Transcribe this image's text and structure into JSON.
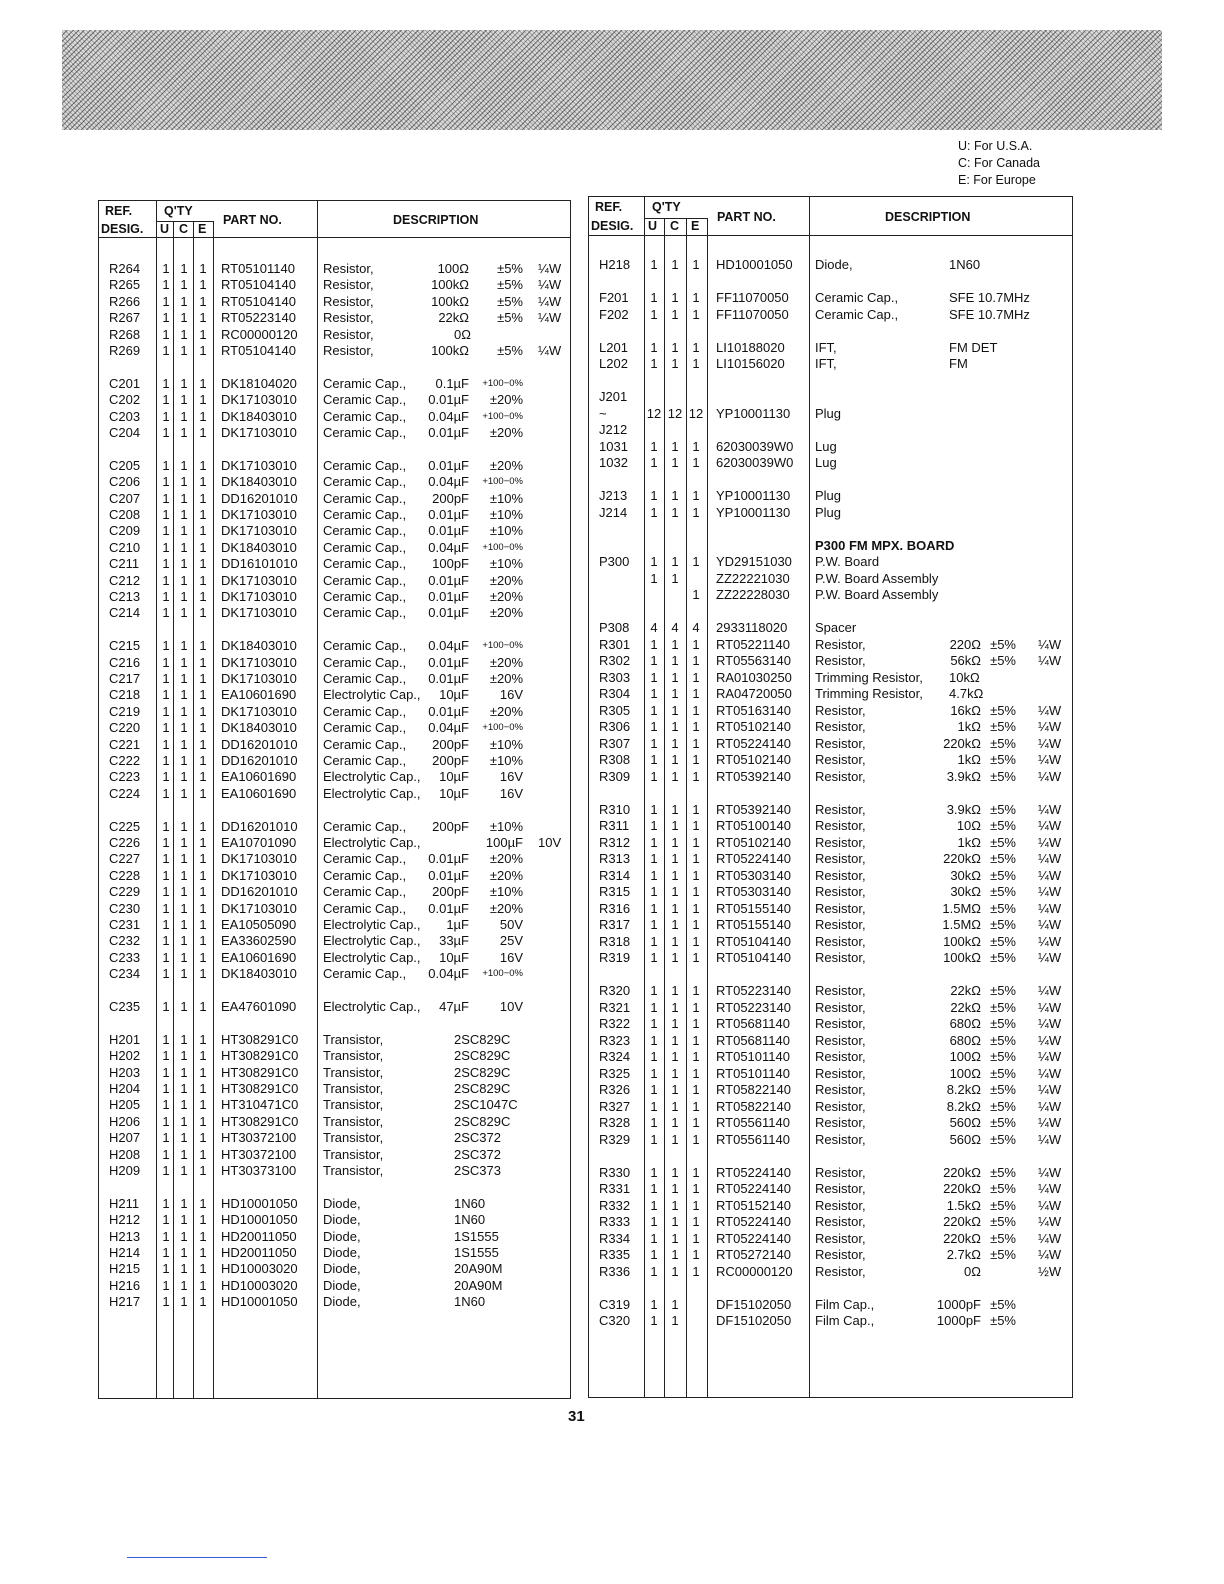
{
  "legend": [
    "U: For U.S.A.",
    "C: For Canada",
    "E: For Europe"
  ],
  "header": {
    "ref1": "REF.",
    "ref2": "DESIG.",
    "qty": "Q'TY",
    "u": "U",
    "c": "C",
    "e": "E",
    "part": "PART  NO.",
    "desc": "DESCRIPTION"
  },
  "page_number": "31",
  "left_rows": [
    [
      "R264",
      "1",
      "1",
      "1",
      "RT05101140",
      "Resistor,",
      "100Ω",
      "±5%",
      "¼W"
    ],
    [
      "R265",
      "1",
      "1",
      "1",
      "RT05104140",
      "Resistor,",
      "100kΩ",
      "±5%",
      "¼W"
    ],
    [
      "R266",
      "1",
      "1",
      "1",
      "RT05104140",
      "Resistor,",
      "100kΩ",
      "±5%",
      "¼W"
    ],
    [
      "R267",
      "1",
      "1",
      "1",
      "RT05223140",
      "Resistor,",
      "22kΩ",
      "±5%",
      "¼W"
    ],
    [
      "R268",
      "1",
      "1",
      "1",
      "RC00000120",
      "Resistor,",
      "0Ω",
      "",
      ""
    ],
    [
      "R269",
      "1",
      "1",
      "1",
      "RT05104140",
      "Resistor,",
      "100kΩ",
      "±5%",
      "¼W"
    ],
    [],
    [
      "C201",
      "1",
      "1",
      "1",
      "DK18104020",
      "Ceramic Cap.,",
      "0.1µF",
      "+100−0%",
      ""
    ],
    [
      "C202",
      "1",
      "1",
      "1",
      "DK17103010",
      "Ceramic Cap.,",
      "0.01µF",
      "±20%",
      ""
    ],
    [
      "C203",
      "1",
      "1",
      "1",
      "DK18403010",
      "Ceramic Cap.,",
      "0.04µF",
      "+100−0%",
      ""
    ],
    [
      "C204",
      "1",
      "1",
      "1",
      "DK17103010",
      "Ceramic Cap.,",
      "0.01µF",
      "±20%",
      ""
    ],
    [],
    [
      "C205",
      "1",
      "1",
      "1",
      "DK17103010",
      "Ceramic Cap.,",
      "0.01µF",
      "±20%",
      ""
    ],
    [
      "C206",
      "1",
      "1",
      "1",
      "DK18403010",
      "Ceramic Cap.,",
      "0.04µF",
      "+100−0%",
      ""
    ],
    [
      "C207",
      "1",
      "1",
      "1",
      "DD16201010",
      "Ceramic Cap.,",
      "200pF",
      "±10%",
      ""
    ],
    [
      "C208",
      "1",
      "1",
      "1",
      "DK17103010",
      "Ceramic Cap.,",
      "0.01µF",
      "±10%",
      ""
    ],
    [
      "C209",
      "1",
      "1",
      "1",
      "DK17103010",
      "Ceramic Cap.,",
      "0.01µF",
      "±10%",
      ""
    ],
    [
      "C210",
      "1",
      "1",
      "1",
      "DK18403010",
      "Ceramic Cap.,",
      "0.04µF",
      "+100−0%",
      ""
    ],
    [
      "C211",
      "1",
      "1",
      "1",
      "DD16101010",
      "Ceramic Cap.,",
      "100pF",
      "±10%",
      ""
    ],
    [
      "C212",
      "1",
      "1",
      "1",
      "DK17103010",
      "Ceramic Cap.,",
      "0.01µF",
      "±20%",
      ""
    ],
    [
      "C213",
      "1",
      "1",
      "1",
      "DK17103010",
      "Ceramic Cap.,",
      "0.01µF",
      "±20%",
      ""
    ],
    [
      "C214",
      "1",
      "1",
      "1",
      "DK17103010",
      "Ceramic Cap.,",
      "0.01µF",
      "±20%",
      ""
    ],
    [],
    [
      "C215",
      "1",
      "1",
      "1",
      "DK18403010",
      "Ceramic Cap.,",
      "0.04µF",
      "+100−0%",
      ""
    ],
    [
      "C216",
      "1",
      "1",
      "1",
      "DK17103010",
      "Ceramic Cap.,",
      "0.01µF",
      "±20%",
      ""
    ],
    [
      "C217",
      "1",
      "1",
      "1",
      "DK17103010",
      "Ceramic Cap.,",
      "0.01µF",
      "±20%",
      ""
    ],
    [
      "C218",
      "1",
      "1",
      "1",
      "EA10601690",
      "Electrolytic Cap.,",
      "10µF",
      "16V",
      ""
    ],
    [
      "C219",
      "1",
      "1",
      "1",
      "DK17103010",
      "Ceramic Cap.,",
      "0.01µF",
      "±20%",
      ""
    ],
    [
      "C220",
      "1",
      "1",
      "1",
      "DK18403010",
      "Ceramic Cap.,",
      "0.04µF",
      "+100−0%",
      ""
    ],
    [
      "C221",
      "1",
      "1",
      "1",
      "DD16201010",
      "Ceramic Cap.,",
      "200pF",
      "±10%",
      ""
    ],
    [
      "C222",
      "1",
      "1",
      "1",
      "DD16201010",
      "Ceramic Cap.,",
      "200pF",
      "±10%",
      ""
    ],
    [
      "C223",
      "1",
      "1",
      "1",
      "EA10601690",
      "Electrolytic Cap.,",
      "10µF",
      "16V",
      ""
    ],
    [
      "C224",
      "1",
      "1",
      "1",
      "EA10601690",
      "Electrolytic Cap.,",
      "10µF",
      "16V",
      ""
    ],
    [],
    [
      "C225",
      "1",
      "1",
      "1",
      "DD16201010",
      "Ceramic Cap.,",
      "200pF",
      "±10%",
      ""
    ],
    [
      "C226",
      "1",
      "1",
      "1",
      "EA10701090",
      "Electrolytic Cap.,",
      "",
      "100µF",
      "10V"
    ],
    [
      "C227",
      "1",
      "1",
      "1",
      "DK17103010",
      "Ceramic Cap.,",
      "0.01µF",
      "±20%",
      ""
    ],
    [
      "C228",
      "1",
      "1",
      "1",
      "DK17103010",
      "Ceramic Cap.,",
      "0.01µF",
      "±20%",
      ""
    ],
    [
      "C229",
      "1",
      "1",
      "1",
      "DD16201010",
      "Ceramic Cap.,",
      "200pF",
      "±10%",
      ""
    ],
    [
      "C230",
      "1",
      "1",
      "1",
      "DK17103010",
      "Ceramic Cap.,",
      "0.01µF",
      "±20%",
      ""
    ],
    [
      "C231",
      "1",
      "1",
      "1",
      "EA10505090",
      "Electrolytic Cap.,",
      "1µF",
      "50V",
      ""
    ],
    [
      "C232",
      "1",
      "1",
      "1",
      "EA33602590",
      "Electrolytic Cap.,",
      "33µF",
      "25V",
      ""
    ],
    [
      "C233",
      "1",
      "1",
      "1",
      "EA10601690",
      "Electrolytic Cap.,",
      "10µF",
      "16V",
      ""
    ],
    [
      "C234",
      "1",
      "1",
      "1",
      "DK18403010",
      "Ceramic Cap.,",
      "0.04µF",
      "+100−0%",
      ""
    ],
    [],
    [
      "C235",
      "1",
      "1",
      "1",
      "EA47601090",
      "Electrolytic Cap.,",
      "47µF",
      "10V",
      ""
    ],
    [],
    [
      "H201",
      "1",
      "1",
      "1",
      "HT308291C0",
      "Transistor,",
      "2SC829C",
      "",
      ""
    ],
    [
      "H202",
      "1",
      "1",
      "1",
      "HT308291C0",
      "Transistor,",
      "2SC829C",
      "",
      ""
    ],
    [
      "H203",
      "1",
      "1",
      "1",
      "HT308291C0",
      "Transistor,",
      "2SC829C",
      "",
      ""
    ],
    [
      "H204",
      "1",
      "1",
      "1",
      "HT308291C0",
      "Transistor,",
      "2SC829C",
      "",
      ""
    ],
    [
      "H205",
      "1",
      "1",
      "1",
      "HT310471C0",
      "Transistor,",
      "2SC1047C",
      "",
      ""
    ],
    [
      "H206",
      "1",
      "1",
      "1",
      "HT308291C0",
      "Transistor,",
      "2SC829C",
      "",
      ""
    ],
    [
      "H207",
      "1",
      "1",
      "1",
      "HT30372100",
      "Transistor,",
      "2SC372",
      "",
      ""
    ],
    [
      "H208",
      "1",
      "1",
      "1",
      "HT30372100",
      "Transistor,",
      "2SC372",
      "",
      ""
    ],
    [
      "H209",
      "1",
      "1",
      "1",
      "HT30373100",
      "Transistor,",
      "2SC373",
      "",
      ""
    ],
    [],
    [
      "H211",
      "1",
      "1",
      "1",
      "HD10001050",
      "Diode,",
      "1N60",
      "",
      ""
    ],
    [
      "H212",
      "1",
      "1",
      "1",
      "HD10001050",
      "Diode,",
      "1N60",
      "",
      ""
    ],
    [
      "H213",
      "1",
      "1",
      "1",
      "HD20011050",
      "Diode,",
      "1S1555",
      "",
      ""
    ],
    [
      "H214",
      "1",
      "1",
      "1",
      "HD20011050",
      "Diode,",
      "1S1555",
      "",
      ""
    ],
    [
      "H215",
      "1",
      "1",
      "1",
      "HD10003020",
      "Diode,",
      "20A90M",
      "",
      ""
    ],
    [
      "H216",
      "1",
      "1",
      "1",
      "HD10003020",
      "Diode,",
      "20A90M",
      "",
      ""
    ],
    [
      "H217",
      "1",
      "1",
      "1",
      "HD10001050",
      "Diode,",
      "1N60",
      "",
      ""
    ]
  ],
  "right_rows": [
    [
      "H218",
      "1",
      "1",
      "1",
      "HD10001050",
      "Diode,",
      "1N60",
      "",
      ""
    ],
    [],
    [
      "F201",
      "1",
      "1",
      "1",
      "FF11070050",
      "Ceramic Cap.,",
      "SFE 10.7MHz",
      "",
      ""
    ],
    [
      "F202",
      "1",
      "1",
      "1",
      "FF11070050",
      "Ceramic Cap.,",
      "SFE 10.7MHz",
      "",
      ""
    ],
    [],
    [
      "L201",
      "1",
      "1",
      "1",
      "LI10188020",
      "IFT,",
      "FM DET",
      "",
      ""
    ],
    [
      "L202",
      "1",
      "1",
      "1",
      "LI10156020",
      "IFT,",
      "FM",
      "",
      ""
    ],
    [],
    [
      "J201",
      "",
      "",
      "",
      "",
      "",
      "",
      "",
      ""
    ],
    [
      "~",
      "12",
      "12",
      "12",
      "YP10001130",
      "Plug",
      "",
      "",
      ""
    ],
    [
      "J212",
      "",
      "",
      "",
      "",
      "",
      "",
      "",
      ""
    ],
    [
      "1031",
      "1",
      "1",
      "1",
      "62030039W0",
      "Lug",
      "",
      "",
      ""
    ],
    [
      "1032",
      "1",
      "1",
      "1",
      "62030039W0",
      "Lug",
      "",
      "",
      ""
    ],
    [],
    [
      "J213",
      "1",
      "1",
      "1",
      "YP10001130",
      "Plug",
      "",
      "",
      ""
    ],
    [
      "J214",
      "1",
      "1",
      "1",
      "YP10001130",
      "Plug",
      "",
      "",
      ""
    ],
    [],
    {
      "heading": "P300 FM MPX. BOARD"
    },
    [
      "P300",
      "1",
      "1",
      "1",
      "YD29151030",
      "P.W. Board",
      "",
      "",
      ""
    ],
    [
      "",
      "1",
      "1",
      "",
      "ZZ22221030",
      "P.W. Board Assembly",
      "",
      "",
      ""
    ],
    [
      "",
      "",
      "",
      "1",
      "ZZ22228030",
      "P.W. Board Assembly",
      "",
      "",
      ""
    ],
    [],
    [
      "P308",
      "4",
      "4",
      "4",
      "2933118020",
      "Spacer",
      "",
      "",
      ""
    ],
    [
      "R301",
      "1",
      "1",
      "1",
      "RT05221140",
      "Resistor,",
      "220Ω",
      "±5%",
      "¼W"
    ],
    [
      "R302",
      "1",
      "1",
      "1",
      "RT05563140",
      "Resistor,",
      "56kΩ",
      "±5%",
      "¼W"
    ],
    [
      "R303",
      "1",
      "1",
      "1",
      "RA01030250",
      "Trimming Resistor,",
      "10kΩ",
      "",
      ""
    ],
    [
      "R304",
      "1",
      "1",
      "1",
      "RA04720050",
      "Trimming Resistor,",
      "4.7kΩ",
      "",
      ""
    ],
    [
      "R305",
      "1",
      "1",
      "1",
      "RT05163140",
      "Resistor,",
      "16kΩ",
      "±5%",
      "¼W"
    ],
    [
      "R306",
      "1",
      "1",
      "1",
      "RT05102140",
      "Resistor,",
      "1kΩ",
      "±5%",
      "¼W"
    ],
    [
      "R307",
      "1",
      "1",
      "1",
      "RT05224140",
      "Resistor,",
      "220kΩ",
      "±5%",
      "¼W"
    ],
    [
      "R308",
      "1",
      "1",
      "1",
      "RT05102140",
      "Resistor,",
      "1kΩ",
      "±5%",
      "¼W"
    ],
    [
      "R309",
      "1",
      "1",
      "1",
      "RT05392140",
      "Resistor,",
      "3.9kΩ",
      "±5%",
      "¼W"
    ],
    [],
    [
      "R310",
      "1",
      "1",
      "1",
      "RT05392140",
      "Resistor,",
      "3.9kΩ",
      "±5%",
      "¼W"
    ],
    [
      "R311",
      "1",
      "1",
      "1",
      "RT05100140",
      "Resistor,",
      "10Ω",
      "±5%",
      "¼W"
    ],
    [
      "R312",
      "1",
      "1",
      "1",
      "RT05102140",
      "Resistor,",
      "1kΩ",
      "±5%",
      "¼W"
    ],
    [
      "R313",
      "1",
      "1",
      "1",
      "RT05224140",
      "Resistor,",
      "220kΩ",
      "±5%",
      "¼W"
    ],
    [
      "R314",
      "1",
      "1",
      "1",
      "RT05303140",
      "Resistor,",
      "30kΩ",
      "±5%",
      "¼W"
    ],
    [
      "R315",
      "1",
      "1",
      "1",
      "RT05303140",
      "Resistor,",
      "30kΩ",
      "±5%",
      "¼W"
    ],
    [
      "R316",
      "1",
      "1",
      "1",
      "RT05155140",
      "Resistor,",
      "1.5MΩ",
      "±5%",
      "¼W"
    ],
    [
      "R317",
      "1",
      "1",
      "1",
      "RT05155140",
      "Resistor,",
      "1.5MΩ",
      "±5%",
      "¼W"
    ],
    [
      "R318",
      "1",
      "1",
      "1",
      "RT05104140",
      "Resistor,",
      "100kΩ",
      "±5%",
      "¼W"
    ],
    [
      "R319",
      "1",
      "1",
      "1",
      "RT05104140",
      "Resistor,",
      "100kΩ",
      "±5%",
      "¼W"
    ],
    [],
    [
      "R320",
      "1",
      "1",
      "1",
      "RT05223140",
      "Resistor,",
      "22kΩ",
      "±5%",
      "¼W"
    ],
    [
      "R321",
      "1",
      "1",
      "1",
      "RT05223140",
      "Resistor,",
      "22kΩ",
      "±5%",
      "¼W"
    ],
    [
      "R322",
      "1",
      "1",
      "1",
      "RT05681140",
      "Resistor,",
      "680Ω",
      "±5%",
      "¼W"
    ],
    [
      "R323",
      "1",
      "1",
      "1",
      "RT05681140",
      "Resistor,",
      "680Ω",
      "±5%",
      "¼W"
    ],
    [
      "R324",
      "1",
      "1",
      "1",
      "RT05101140",
      "Resistor,",
      "100Ω",
      "±5%",
      "¼W"
    ],
    [
      "R325",
      "1",
      "1",
      "1",
      "RT05101140",
      "Resistor,",
      "100Ω",
      "±5%",
      "¼W"
    ],
    [
      "R326",
      "1",
      "1",
      "1",
      "RT05822140",
      "Resistor,",
      "8.2kΩ",
      "±5%",
      "¼W"
    ],
    [
      "R327",
      "1",
      "1",
      "1",
      "RT05822140",
      "Resistor,",
      "8.2kΩ",
      "±5%",
      "¼W"
    ],
    [
      "R328",
      "1",
      "1",
      "1",
      "RT05561140",
      "Resistor,",
      "560Ω",
      "±5%",
      "¼W"
    ],
    [
      "R329",
      "1",
      "1",
      "1",
      "RT05561140",
      "Resistor,",
      "560Ω",
      "±5%",
      "¼W"
    ],
    [],
    [
      "R330",
      "1",
      "1",
      "1",
      "RT05224140",
      "Resistor,",
      "220kΩ",
      "±5%",
      "¼W"
    ],
    [
      "R331",
      "1",
      "1",
      "1",
      "RT05224140",
      "Resistor,",
      "220kΩ",
      "±5%",
      "¼W"
    ],
    [
      "R332",
      "1",
      "1",
      "1",
      "RT05152140",
      "Resistor,",
      "1.5kΩ",
      "±5%",
      "¼W"
    ],
    [
      "R333",
      "1",
      "1",
      "1",
      "RT05224140",
      "Resistor,",
      "220kΩ",
      "±5%",
      "¼W"
    ],
    [
      "R334",
      "1",
      "1",
      "1",
      "RT05224140",
      "Resistor,",
      "220kΩ",
      "±5%",
      "¼W"
    ],
    [
      "R335",
      "1",
      "1",
      "1",
      "RT05272140",
      "Resistor,",
      "2.7kΩ",
      "±5%",
      "¼W"
    ],
    [
      "R336",
      "1",
      "1",
      "1",
      "RC00000120",
      "Resistor,",
      "0Ω",
      "",
      "½W"
    ],
    [],
    [
      "C319",
      "1",
      "1",
      "",
      "DF15102050",
      "Film Cap.,",
      "1000pF",
      "±5%",
      ""
    ],
    [
      "C320",
      "1",
      "1",
      "",
      "DF15102050",
      "Film Cap.,",
      "1000pF",
      "±5%",
      ""
    ]
  ]
}
